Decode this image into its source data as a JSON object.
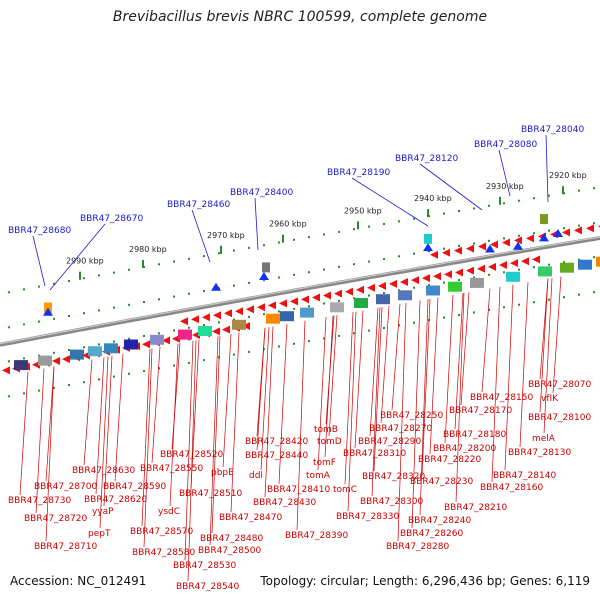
{
  "title": "Brevibacillus brevis NBRC 100599, complete genome",
  "accession": "Accession: NC_012491",
  "topology": "Topology: circular; Length: 6,296,436 bp; Genes: 6,119",
  "scale_labels": [
    "2920 kbp",
    "2930 kbp",
    "2940 kbp",
    "2950 kbp",
    "2960 kbp",
    "2970 kbp",
    "2980 kbp",
    "2990 kbp"
  ],
  "top_genes": [
    "BBR47_28040",
    "BBR47_28080",
    "BBR47_28120",
    "BBR47_28190",
    "BBR47_28400",
    "BBR47_28460",
    "BBR47_28670",
    "BBR47_28680"
  ],
  "bottom_genes": [
    "BBR47_28070",
    "vfIK",
    "BBR47_28150",
    "BBR47_28100",
    "BBR47_28170",
    "BBR47_28250",
    "melA",
    "BBR47_28180",
    "BBR47_28270",
    "BBR47_28130",
    "BBR47_28290",
    "BBR47_28200",
    "tomB",
    "tomD",
    "BBR47_28420",
    "BBR47_28310",
    "BBR47_28220",
    "BBR47_28440",
    "BBR47_28140",
    "BBR47_28520",
    "BBR47_28550",
    "BBR47_28630",
    "ddl",
    "tomF",
    "pbpE",
    "BBR47_28700",
    "BBR47_28590",
    "BBR47_28410",
    "BBR47_28320",
    "BBR47_28230",
    "BBR47_28160",
    "tomA",
    "tomC",
    "BBR47_28620",
    "BBR47_28510",
    "BBR47_28730",
    "BBR47_28300",
    "BBR47_28430",
    "BBR47_28210",
    "yyaP",
    "ysdC",
    "BBR47_28720",
    "BBR47_28470",
    "BBR47_28330",
    "BBR47_28240",
    "pepT",
    "BBR47_28570",
    "BBR47_28480",
    "BBR47_28390",
    "BBR47_28260",
    "BBR47_28710",
    "BBR47_28580",
    "BBR47_28500",
    "BBR47_28280",
    "BBR47_28530",
    "BBR47_28540"
  ],
  "colors": {
    "gene": "#ee1111",
    "top_label": "#1a1acc",
    "bottom_label": "#cc0000",
    "backbone": "#888888",
    "tick": "#2a8a2a"
  }
}
